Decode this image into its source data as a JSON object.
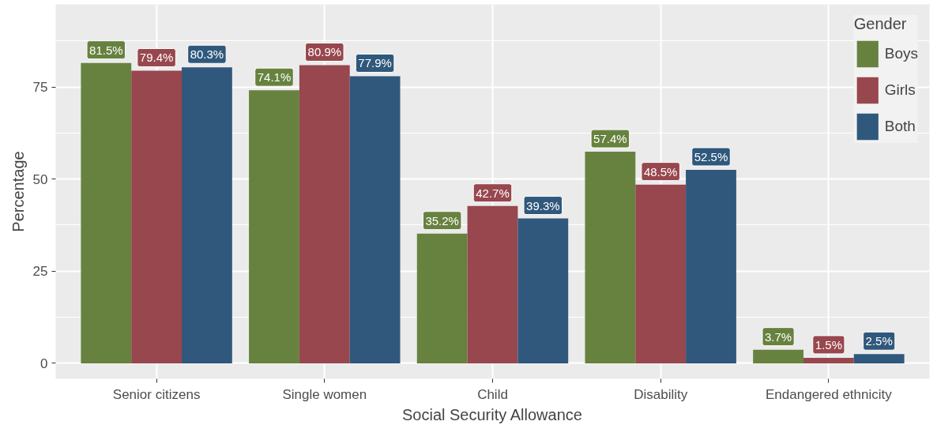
{
  "chart_data": {
    "type": "bar",
    "xlabel": "Social Security Allowance",
    "ylabel": "Percentage",
    "legend_title": "Gender",
    "categories": [
      "Senior citizens",
      "Single women",
      "Child",
      "Disability",
      "Endangered ethnicity"
    ],
    "series": [
      {
        "name": "Boys",
        "color": "#67823f",
        "values": [
          81.5,
          74.1,
          35.2,
          57.4,
          3.7
        ],
        "value_labels": [
          "81.5%",
          "74.1%",
          "35.2%",
          "57.4%",
          "3.7%"
        ]
      },
      {
        "name": "Girls",
        "color": "#98474e",
        "values": [
          79.4,
          80.9,
          42.7,
          48.5,
          1.5
        ],
        "value_labels": [
          "79.4%",
          "80.9%",
          "42.7%",
          "48.5%",
          "1.5%"
        ]
      },
      {
        "name": "Both",
        "color": "#2f587c",
        "values": [
          80.3,
          77.9,
          39.3,
          52.5,
          2.5
        ],
        "value_labels": [
          "80.3%",
          "77.9%",
          "39.3%",
          "52.5%",
          "2.5%"
        ]
      }
    ],
    "ylim": [
      -4.2,
      97.4
    ],
    "yticks": [
      0,
      25,
      50,
      75
    ],
    "grid": true,
    "legend": "top right"
  }
}
